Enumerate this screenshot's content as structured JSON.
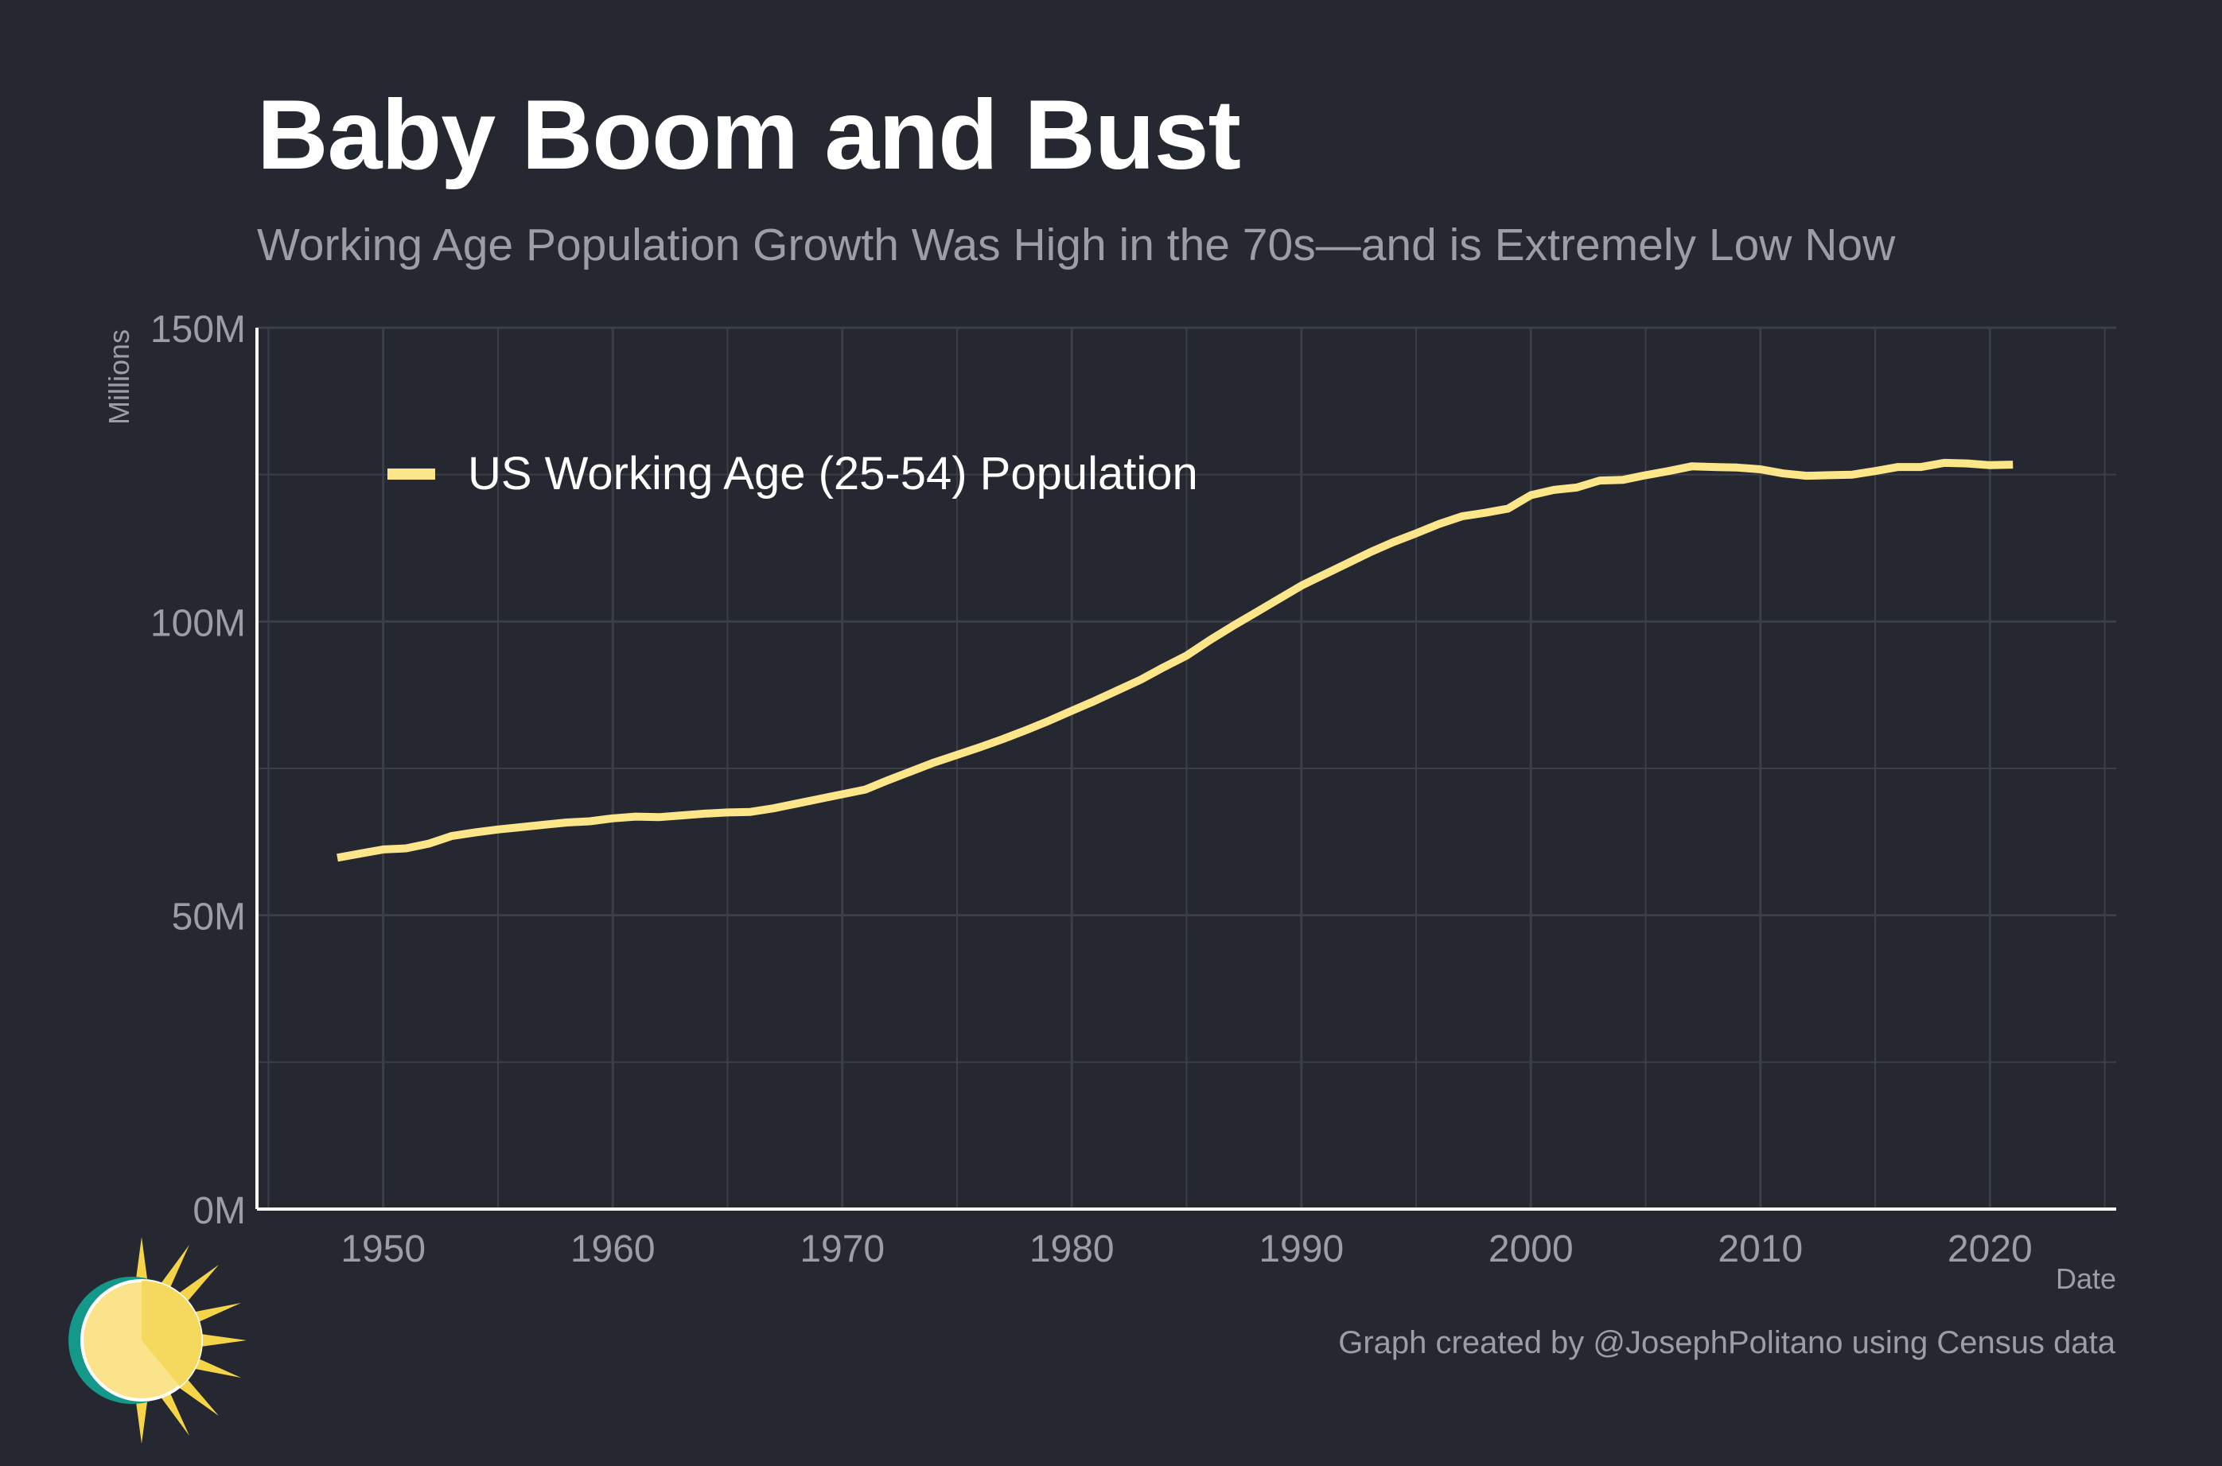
{
  "title": "Baby Boom and Bust",
  "subtitle": "Working Age Population Growth Was High in the 70s—and is Extremely Low Now",
  "caption": "Graph created by @JosephPolitano using Census data",
  "colors": {
    "background": "#252831",
    "line": "#fde68a",
    "grid": "#3b3f48",
    "text_muted": "#9b9ea4",
    "axis": "#ffffff"
  },
  "chart_data": {
    "type": "line",
    "xlabel": "Date",
    "ylabel": "Millions",
    "xlim": [
      1944.5,
      2025.5
    ],
    "ylim": [
      0,
      150
    ],
    "x_ticks": [
      1950,
      1960,
      1970,
      1980,
      1990,
      2000,
      2010,
      2020
    ],
    "x_tick_labels": [
      "1950",
      "1960",
      "1970",
      "1980",
      "1990",
      "2000",
      "2010",
      "2020"
    ],
    "y_ticks": [
      0,
      50,
      100,
      150
    ],
    "y_tick_labels": [
      "0M",
      "50M",
      "100M",
      "150M"
    ],
    "grid": true,
    "legend": "top-left",
    "series": [
      {
        "name": "US Working Age (25-54) Population",
        "x": [
          1948,
          1949,
          1950,
          1951,
          1952,
          1953,
          1954,
          1955,
          1956,
          1957,
          1958,
          1959,
          1960,
          1961,
          1962,
          1963,
          1964,
          1965,
          1966,
          1967,
          1968,
          1969,
          1970,
          1971,
          1972,
          1973,
          1974,
          1975,
          1976,
          1977,
          1978,
          1979,
          1980,
          1981,
          1982,
          1983,
          1984,
          1985,
          1986,
          1987,
          1988,
          1989,
          1990,
          1991,
          1992,
          1993,
          1994,
          1995,
          1996,
          1997,
          1998,
          1999,
          2000,
          2001,
          2002,
          2003,
          2004,
          2005,
          2006,
          2007,
          2008,
          2009,
          2010,
          2011,
          2012,
          2013,
          2014,
          2015,
          2016,
          2017,
          2018,
          2019,
          2020,
          2021
        ],
        "values": [
          59.8,
          60.5,
          61.2,
          61.4,
          62.2,
          63.5,
          64.1,
          64.6,
          65.0,
          65.4,
          65.8,
          66.0,
          66.5,
          66.8,
          66.7,
          67.0,
          67.3,
          67.5,
          67.6,
          68.2,
          69.0,
          69.8,
          70.6,
          71.4,
          73.0,
          74.5,
          76.0,
          77.3,
          78.6,
          80.0,
          81.5,
          83.1,
          84.8,
          86.5,
          88.3,
          90.1,
          92.2,
          94.2,
          96.8,
          99.2,
          101.5,
          103.8,
          106.1,
          108.0,
          109.9,
          111.8,
          113.5,
          115.0,
          116.6,
          117.9,
          118.5,
          119.2,
          121.5,
          122.4,
          122.8,
          124.0,
          124.1,
          124.9,
          125.6,
          126.4,
          126.3,
          126.2,
          125.9,
          125.2,
          124.8,
          124.9,
          125.0,
          125.6,
          126.3,
          126.3,
          127.0,
          126.9,
          126.6,
          126.7
        ]
      }
    ]
  }
}
